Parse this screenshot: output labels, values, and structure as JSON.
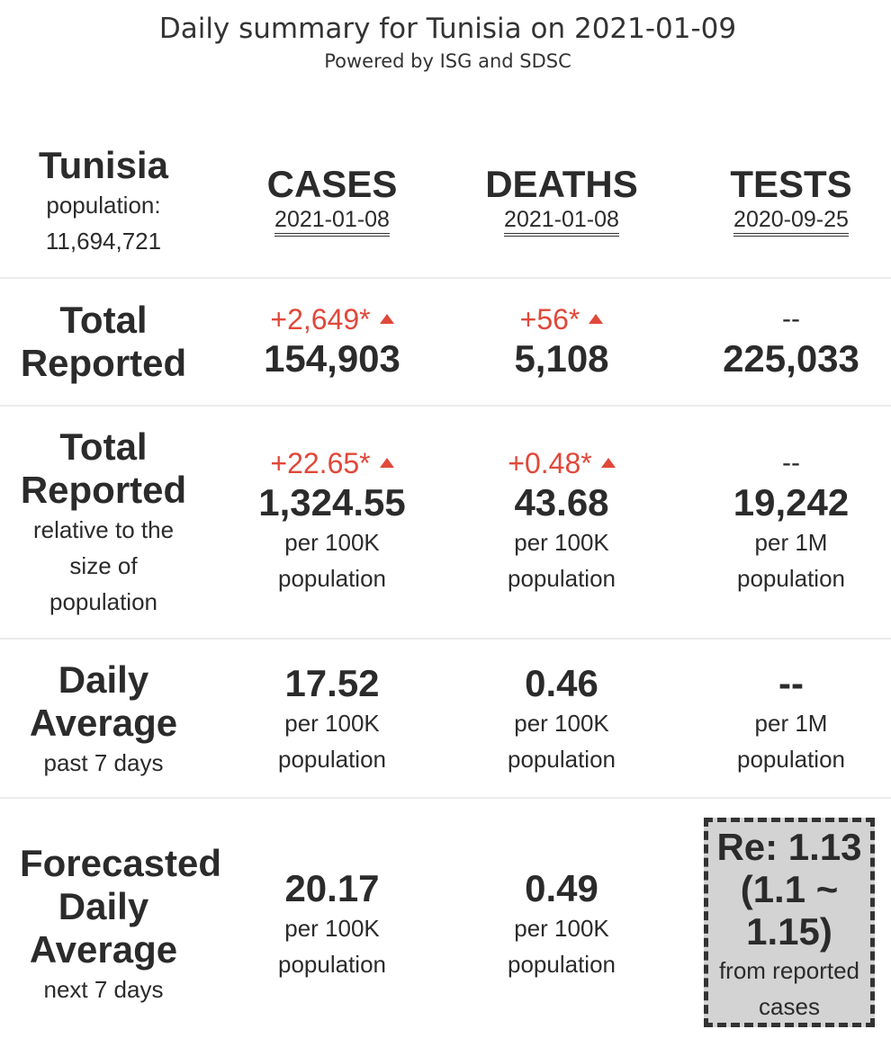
{
  "header": {
    "title": "Daily summary for Tunisia on 2021-01-09",
    "subtitle": "Powered by ISG and SDSC"
  },
  "country": {
    "name": "Tunisia",
    "population_label": "population:",
    "population_value": "11,694,721"
  },
  "columns": [
    {
      "label": "CASES",
      "date": "2021-01-08"
    },
    {
      "label": "DEATHS",
      "date": "2021-01-08"
    },
    {
      "label": "TESTS",
      "date": "2020-09-25"
    }
  ],
  "rows": {
    "total": {
      "label_line1": "Total",
      "label_line2": "Reported",
      "cases": {
        "delta": "+2,649*",
        "value": "154,903"
      },
      "deaths": {
        "delta": "+56*",
        "value": "5,108"
      },
      "tests": {
        "delta": "--",
        "value": "225,033"
      }
    },
    "relative": {
      "label_line1": "Total",
      "label_line2": "Reported",
      "sub1": "relative to the",
      "sub2": "size of",
      "sub3": "population",
      "cases": {
        "delta": "+22.65*",
        "value": "1,324.55",
        "unit1": "per 100K",
        "unit2": "population"
      },
      "deaths": {
        "delta": "+0.48*",
        "value": "43.68",
        "unit1": "per 100K",
        "unit2": "population"
      },
      "tests": {
        "delta": "--",
        "value": "19,242",
        "unit1": "per 1M",
        "unit2": "population"
      }
    },
    "daily": {
      "label_line1": "Daily",
      "label_line2": "Average",
      "sub": "past 7 days",
      "cases": {
        "value": "17.52",
        "unit1": "per 100K",
        "unit2": "population"
      },
      "deaths": {
        "value": "0.46",
        "unit1": "per 100K",
        "unit2": "population"
      },
      "tests": {
        "value": "--",
        "unit1": "per 1M",
        "unit2": "population"
      }
    },
    "forecast": {
      "label_line1": "Forecasted",
      "label_line2": "Daily",
      "label_line3": "Average",
      "sub": "next 7 days",
      "cases": {
        "value": "20.17",
        "unit1": "per 100K",
        "unit2": "population"
      },
      "deaths": {
        "value": "0.49",
        "unit1": "per 100K",
        "unit2": "population"
      },
      "re": {
        "line1": "Re: 1.13",
        "line2": "(1.1 ~",
        "line3": "1.15)",
        "sub1": "from reported",
        "sub2": "cases"
      }
    }
  },
  "colors": {
    "increase": "#e0483a",
    "text": "#2b2b2b",
    "re_box": "#d3d3d3"
  }
}
